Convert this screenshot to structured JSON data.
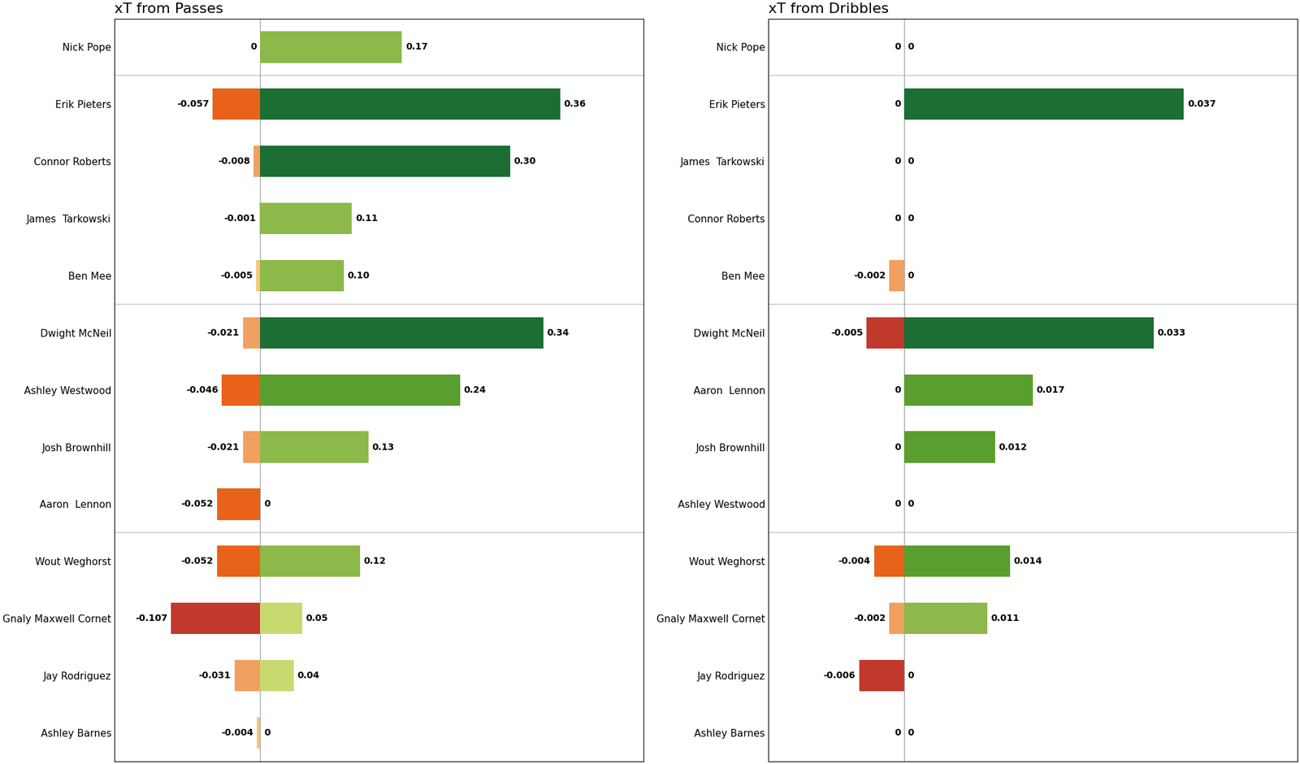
{
  "chart_data": [
    {
      "type": "bar",
      "orientation": "horizontal",
      "title": "xT from Passes",
      "categories": [
        "Nick Pope",
        "Erik Pieters",
        "Connor Roberts",
        "James  Tarkowski",
        "Ben Mee",
        "Dwight McNeil",
        "Ashley Westwood",
        "Josh Brownhill",
        "Aaron  Lennon",
        "Wout Weghorst",
        "Gnaly Maxwell Cornet",
        "Jay Rodriguez",
        "Ashley Barnes"
      ],
      "groups": [
        0,
        1,
        1,
        1,
        1,
        2,
        2,
        2,
        2,
        3,
        3,
        3,
        3
      ],
      "series": [
        {
          "values": [
            0.0,
            -0.057,
            -0.008,
            -0.001,
            -0.005,
            -0.021,
            -0.046,
            -0.021,
            -0.052,
            -0.052,
            -0.107,
            -0.031,
            -0.004
          ],
          "value_labels": [
            "0",
            "-0.057",
            "-0.008",
            "-0.001",
            "-0.005",
            "-0.021",
            "-0.046",
            "-0.021",
            "-0.052",
            "-0.052",
            "-0.107",
            "-0.031",
            "-0.004"
          ],
          "colors": [
            "#F5C878",
            "#E8621A",
            "#F0A060",
            "#F5C878",
            "#F5C878",
            "#F0A060",
            "#E8621A",
            "#F0A060",
            "#E8621A",
            "#E8621A",
            "#C0392B",
            "#F0A060",
            "#F5C878"
          ]
        },
        {
          "values": [
            0.17,
            0.36,
            0.3,
            0.11,
            0.1,
            0.34,
            0.24,
            0.13,
            0.0,
            0.12,
            0.05,
            0.04,
            0.0
          ],
          "value_labels": [
            "0.17",
            "0.36",
            "0.30",
            "0.11",
            "0.10",
            "0.34",
            "0.24",
            "0.13",
            "0",
            "0.12",
            "0.05",
            "0.04",
            "0"
          ],
          "colors": [
            "#8DB84A",
            "#1C6E35",
            "#1C6E35",
            "#8DB84A",
            "#8DB84A",
            "#1C6E35",
            "#5A9E2F",
            "#8DB84A",
            "#C8D96F",
            "#8DB84A",
            "#C8D96F",
            "#C8D96F",
            "#C8D96F"
          ]
        }
      ],
      "xlim": [
        -0.175,
        0.46
      ],
      "data_labels": true,
      "tick_labels": "y",
      "grid": false
    },
    {
      "type": "bar",
      "orientation": "horizontal",
      "title": "xT from Dribbles",
      "categories": [
        "Nick Pope",
        "Erik Pieters",
        "James  Tarkowski",
        "Connor Roberts",
        "Ben Mee",
        "Dwight McNeil",
        "Aaron  Lennon",
        "Josh Brownhill",
        "Ashley Westwood",
        "Wout Weghorst",
        "Gnaly Maxwell Cornet",
        "Jay Rodriguez",
        "Ashley Barnes"
      ],
      "groups": [
        0,
        1,
        1,
        1,
        1,
        2,
        2,
        2,
        2,
        3,
        3,
        3,
        3
      ],
      "series": [
        {
          "values": [
            0.0,
            0.0,
            0.0,
            0.0,
            -0.002,
            -0.005,
            0.0,
            0.0,
            0.0,
            -0.004,
            -0.002,
            -0.006,
            0.0
          ],
          "value_labels": [
            "0",
            "0",
            "0",
            "0",
            "-0.002",
            "-0.005",
            "0",
            "0",
            "0",
            "-0.004",
            "-0.002",
            "-0.006",
            "0"
          ],
          "colors": [
            "#F5C878",
            "#F5C878",
            "#F5C878",
            "#F5C878",
            "#F0A060",
            "#C0392B",
            "#F5C878",
            "#F5C878",
            "#F5C878",
            "#E8621A",
            "#F0A060",
            "#C0392B",
            "#F5C878"
          ]
        },
        {
          "values": [
            0.0,
            0.037,
            0.0,
            0.0,
            0.0,
            0.033,
            0.017,
            0.012,
            0.0,
            0.014,
            0.011,
            0.0,
            0.0
          ],
          "value_labels": [
            "0",
            "0.037",
            "0",
            "0",
            "0",
            "0.033",
            "0.017",
            "0.012",
            "0",
            "0.014",
            "0.011",
            "0",
            "0"
          ],
          "colors": [
            "#C8D96F",
            "#1C6E35",
            "#C8D96F",
            "#C8D96F",
            "#C8D96F",
            "#1C6E35",
            "#5A9E2F",
            "#5A9E2F",
            "#C8D96F",
            "#5A9E2F",
            "#8DB84A",
            "#C8D96F",
            "#C8D96F"
          ]
        }
      ],
      "xlim": [
        -0.018,
        0.052
      ],
      "data_labels": true,
      "tick_labels": "y",
      "grid": false
    }
  ]
}
